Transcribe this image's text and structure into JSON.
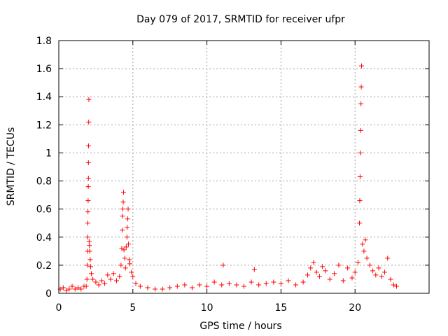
{
  "chart_data": {
    "type": "scatter",
    "title": "Day 079 of 2017, SRMTID for receiver ufpr",
    "xlabel": "GPS time / hours",
    "ylabel": "SRMTID / TECUs",
    "xlim": [
      0,
      25
    ],
    "ylim": [
      0,
      1.8
    ],
    "xticks": [
      0,
      5,
      10,
      15,
      20
    ],
    "yticks": [
      0,
      0.2,
      0.4,
      0.6,
      0.8,
      1,
      1.2,
      1.4,
      1.6,
      1.8
    ],
    "xtick_labels": [
      "0",
      "5",
      "10",
      "15",
      "20"
    ],
    "ytick_labels": [
      "0",
      "0.2",
      "0.4",
      "0.6",
      "0.8",
      "1",
      "1.2",
      "1.4",
      "1.6",
      "1.8"
    ],
    "grid": true,
    "marker": "+",
    "color": "#ff0000",
    "series": [
      {
        "name": "SRMTID",
        "points": [
          [
            0.1,
            0.03
          ],
          [
            0.3,
            0.04
          ],
          [
            0.5,
            0.02
          ],
          [
            0.7,
            0.03
          ],
          [
            0.9,
            0.05
          ],
          [
            1.1,
            0.03
          ],
          [
            1.3,
            0.04
          ],
          [
            1.5,
            0.03
          ],
          [
            1.7,
            0.05
          ],
          [
            1.85,
            0.05
          ],
          [
            1.9,
            0.1
          ],
          [
            1.92,
            0.2
          ],
          [
            1.94,
            0.3
          ],
          [
            1.95,
            0.4
          ],
          [
            1.96,
            0.5
          ],
          [
            1.97,
            0.58
          ],
          [
            1.98,
            0.66
          ],
          [
            1.99,
            0.76
          ],
          [
            2.0,
            0.82
          ],
          [
            2.0,
            0.93
          ],
          [
            2.01,
            1.05
          ],
          [
            2.02,
            1.22
          ],
          [
            2.03,
            1.38
          ],
          [
            2.05,
            0.37
          ],
          [
            2.07,
            0.34
          ],
          [
            2.09,
            0.3
          ],
          [
            2.12,
            0.24
          ],
          [
            2.15,
            0.19
          ],
          [
            2.2,
            0.14
          ],
          [
            2.3,
            0.1
          ],
          [
            2.5,
            0.08
          ],
          [
            2.7,
            0.06
          ],
          [
            2.9,
            0.09
          ],
          [
            3.1,
            0.07
          ],
          [
            3.3,
            0.13
          ],
          [
            3.5,
            0.1
          ],
          [
            3.7,
            0.14
          ],
          [
            3.9,
            0.09
          ],
          [
            4.1,
            0.12
          ],
          [
            4.2,
            0.2
          ],
          [
            4.25,
            0.32
          ],
          [
            4.28,
            0.45
          ],
          [
            4.3,
            0.55
          ],
          [
            4.32,
            0.6
          ],
          [
            4.35,
            0.65
          ],
          [
            4.37,
            0.72
          ],
          [
            4.4,
            0.31
          ],
          [
            4.45,
            0.25
          ],
          [
            4.5,
            0.18
          ],
          [
            4.55,
            0.33
          ],
          [
            4.6,
            0.4
          ],
          [
            4.62,
            0.47
          ],
          [
            4.65,
            0.53
          ],
          [
            4.68,
            0.6
          ],
          [
            4.7,
            0.35
          ],
          [
            4.75,
            0.24
          ],
          [
            4.8,
            0.21
          ],
          [
            4.9,
            0.15
          ],
          [
            5.0,
            0.12
          ],
          [
            5.2,
            0.07
          ],
          [
            5.5,
            0.05
          ],
          [
            6.0,
            0.04
          ],
          [
            6.5,
            0.03
          ],
          [
            7.0,
            0.03
          ],
          [
            7.5,
            0.04
          ],
          [
            8.0,
            0.05
          ],
          [
            8.5,
            0.06
          ],
          [
            9.0,
            0.04
          ],
          [
            9.5,
            0.06
          ],
          [
            10.0,
            0.05
          ],
          [
            10.5,
            0.08
          ],
          [
            11.0,
            0.06
          ],
          [
            11.1,
            0.2
          ],
          [
            11.5,
            0.07
          ],
          [
            12.0,
            0.06
          ],
          [
            12.5,
            0.05
          ],
          [
            13.0,
            0.08
          ],
          [
            13.2,
            0.17
          ],
          [
            13.5,
            0.06
          ],
          [
            14.0,
            0.07
          ],
          [
            14.5,
            0.08
          ],
          [
            15.0,
            0.07
          ],
          [
            15.5,
            0.09
          ],
          [
            16.0,
            0.06
          ],
          [
            16.5,
            0.08
          ],
          [
            16.8,
            0.13
          ],
          [
            17.0,
            0.18
          ],
          [
            17.2,
            0.22
          ],
          [
            17.4,
            0.15
          ],
          [
            17.6,
            0.12
          ],
          [
            17.8,
            0.19
          ],
          [
            18.0,
            0.16
          ],
          [
            18.3,
            0.1
          ],
          [
            18.6,
            0.14
          ],
          [
            18.9,
            0.2
          ],
          [
            19.2,
            0.09
          ],
          [
            19.5,
            0.18
          ],
          [
            19.8,
            0.11
          ],
          [
            20.0,
            0.15
          ],
          [
            20.2,
            0.22
          ],
          [
            20.3,
            0.5
          ],
          [
            20.32,
            0.66
          ],
          [
            20.34,
            0.83
          ],
          [
            20.36,
            1.0
          ],
          [
            20.38,
            1.16
          ],
          [
            20.4,
            1.35
          ],
          [
            20.42,
            1.47
          ],
          [
            20.44,
            1.62
          ],
          [
            20.5,
            0.35
          ],
          [
            20.6,
            0.3
          ],
          [
            20.7,
            0.38
          ],
          [
            20.8,
            0.25
          ],
          [
            21.0,
            0.2
          ],
          [
            21.2,
            0.16
          ],
          [
            21.4,
            0.13
          ],
          [
            21.6,
            0.18
          ],
          [
            21.8,
            0.12
          ],
          [
            22.0,
            0.15
          ],
          [
            22.2,
            0.25
          ],
          [
            22.4,
            0.1
          ],
          [
            22.6,
            0.06
          ],
          [
            22.8,
            0.05
          ]
        ]
      }
    ]
  }
}
